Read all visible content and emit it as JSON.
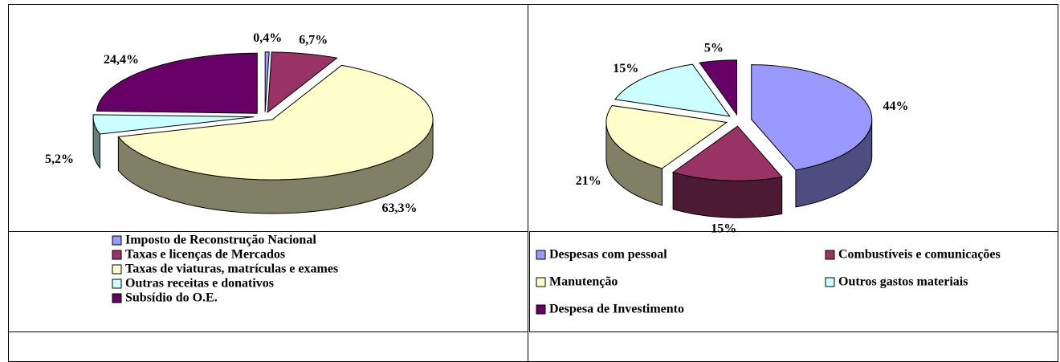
{
  "chart_data": [
    {
      "type": "pie",
      "categories": [
        "Imposto de Reconstrução Nacional",
        "Taxas e licenças de Mercados",
        "Taxas de viaturas, matrículas e exames",
        "Outras receitas e donativos",
        "Subsídio do O.E."
      ],
      "values": [
        0.4,
        6.7,
        63.3,
        5.2,
        24.4
      ],
      "value_labels": [
        "0,4%",
        "6,7%",
        "63,3%",
        "5,2%",
        "24,4%"
      ],
      "colors": [
        "#9999ff",
        "#993366",
        "#ffffcc",
        "#ccffff",
        "#660066"
      ]
    },
    {
      "type": "pie",
      "categories": [
        "Despesas com pessoal",
        "Combustíveis e comunicações",
        "Manutenção",
        "Outros gastos materiais",
        "Despesa de Investimento"
      ],
      "values": [
        44,
        15,
        21,
        15,
        5
      ],
      "value_labels": [
        "44%",
        "15%",
        "21%",
        "15%",
        "5%"
      ],
      "colors": [
        "#9999ff",
        "#993366",
        "#ffffcc",
        "#ccffff",
        "#660066"
      ]
    }
  ]
}
